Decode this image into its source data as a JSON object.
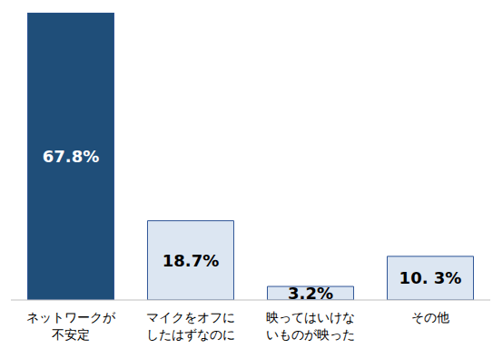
{
  "chart_data": {
    "type": "bar",
    "categories": [
      "ネットワークが\n不安定",
      "マイクをオフに\nしたはずなのに",
      "映ってはいけな\nいものが映った",
      "その他"
    ],
    "values": [
      67.8,
      18.7,
      3.2,
      10.3
    ],
    "value_labels": [
      "67.8%",
      "18.7%",
      "3.2%",
      "10. 3%"
    ],
    "colors": [
      "#1f4e79",
      "#dce6f2",
      "#dce6f2",
      "#dce6f2"
    ],
    "ylim": [
      0,
      67.8
    ],
    "data_labels": true,
    "tick_labels": "x"
  }
}
